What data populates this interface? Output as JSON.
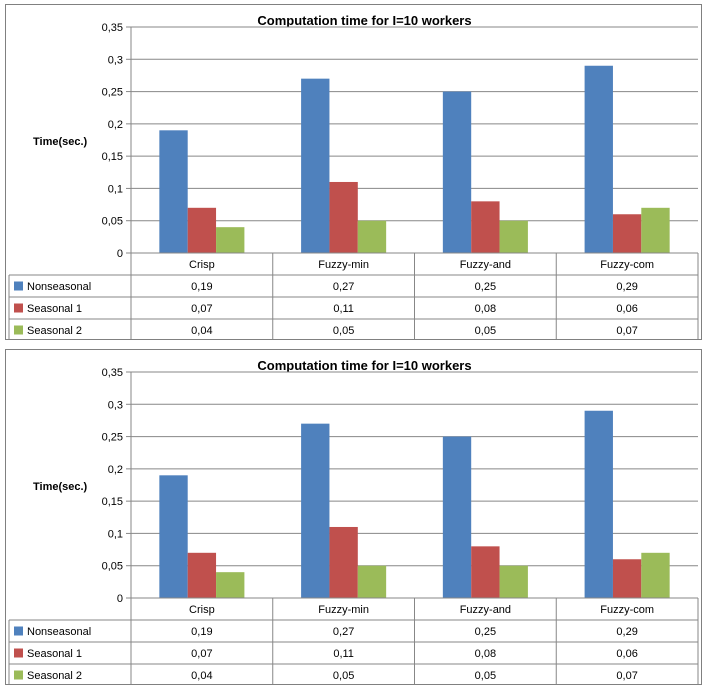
{
  "chart_data": [
    {
      "type": "bar",
      "title": "Computation time for I=10 workers",
      "ylabel": "Time(sec.)",
      "xlabel": "",
      "categories": [
        "Crisp",
        "Fuzzy-min",
        "Fuzzy-and",
        "Fuzzy-com"
      ],
      "series": [
        {
          "name": "Nonseasonal",
          "values": [
            0.19,
            0.27,
            0.25,
            0.29
          ],
          "labels": [
            "0,19",
            "0,27",
            "0,25",
            "0,29"
          ],
          "color": "#4f81bd"
        },
        {
          "name": "Seasonal 1",
          "values": [
            0.07,
            0.11,
            0.08,
            0.06
          ],
          "labels": [
            "0,07",
            "0,11",
            "0,08",
            "0,06"
          ],
          "color": "#c0504d"
        },
        {
          "name": "Seasonal 2",
          "values": [
            0.04,
            0.05,
            0.05,
            0.07
          ],
          "labels": [
            "0,04",
            "0,05",
            "0,05",
            "0,07"
          ],
          "color": "#9bbb59"
        }
      ],
      "ylim": [
        0,
        0.35
      ],
      "yticks": [
        0,
        0.05,
        0.1,
        0.15,
        0.2,
        0.25,
        0.3,
        0.35
      ],
      "ytick_labels": [
        "0",
        "0,05",
        "0,1",
        "0,15",
        "0,2",
        "0,25",
        "0,3",
        "0,35"
      ],
      "grid": true,
      "legend": "data-table"
    },
    {
      "type": "bar",
      "title": "Computation time for I=10 workers",
      "ylabel": "Time(sec.)",
      "xlabel": "",
      "categories": [
        "Crisp",
        "Fuzzy-min",
        "Fuzzy-and",
        "Fuzzy-com"
      ],
      "series": [
        {
          "name": "Nonseasonal",
          "values": [
            0.19,
            0.27,
            0.25,
            0.29
          ],
          "labels": [
            "0,19",
            "0,27",
            "0,25",
            "0,29"
          ],
          "color": "#4f81bd"
        },
        {
          "name": "Seasonal 1",
          "values": [
            0.07,
            0.11,
            0.08,
            0.06
          ],
          "labels": [
            "0,07",
            "0,11",
            "0,08",
            "0,06"
          ],
          "color": "#c0504d"
        },
        {
          "name": "Seasonal 2",
          "values": [
            0.04,
            0.05,
            0.05,
            0.07
          ],
          "labels": [
            "0,04",
            "0,05",
            "0,05",
            "0,07"
          ],
          "color": "#9bbb59"
        }
      ],
      "ylim": [
        0,
        0.35
      ],
      "yticks": [
        0,
        0.05,
        0.1,
        0.15,
        0.2,
        0.25,
        0.3,
        0.35
      ],
      "ytick_labels": [
        "0",
        "0,05",
        "0,1",
        "0,15",
        "0,2",
        "0,25",
        "0,3",
        "0,35"
      ],
      "grid": true,
      "legend": "data-table"
    }
  ]
}
